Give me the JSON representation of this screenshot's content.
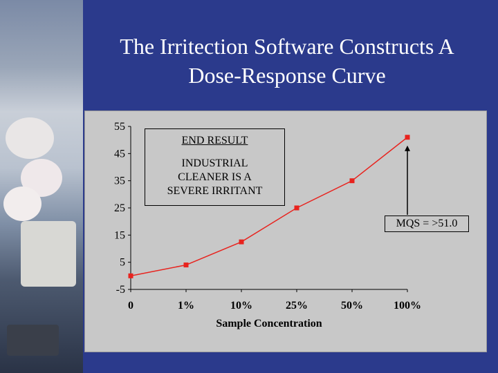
{
  "slide": {
    "title_line1": "The Irritection Software Constructs A",
    "title_line2": "Dose-Response Curve"
  },
  "chart_data": {
    "type": "line",
    "categories": [
      "0",
      "1%",
      "10%",
      "25%",
      "50%",
      "100%"
    ],
    "series": [
      {
        "values": [
          0,
          4,
          12.5,
          25,
          35,
          51
        ]
      }
    ],
    "xlabel": "Sample Concentration",
    "ylabel": "",
    "ylim": [
      -5,
      55
    ],
    "yticks": [
      "55",
      "45",
      "35",
      "25",
      "15",
      "5",
      "-5"
    ],
    "ytick_values": [
      55,
      45,
      35,
      25,
      15,
      5,
      -5
    ],
    "grid": false,
    "line_color": "#e8231e",
    "annotations": {
      "result_heading": "END RESULT",
      "result_line1": "INDUSTRIAL",
      "result_line2": "CLEANER IS A",
      "result_line3": "SEVERE IRRITANT",
      "mqs_label": "MQS = >51.0"
    }
  },
  "colors": {
    "background": "#2b3a8c",
    "panel": "#c8c8c8",
    "series": "#e8231e"
  }
}
